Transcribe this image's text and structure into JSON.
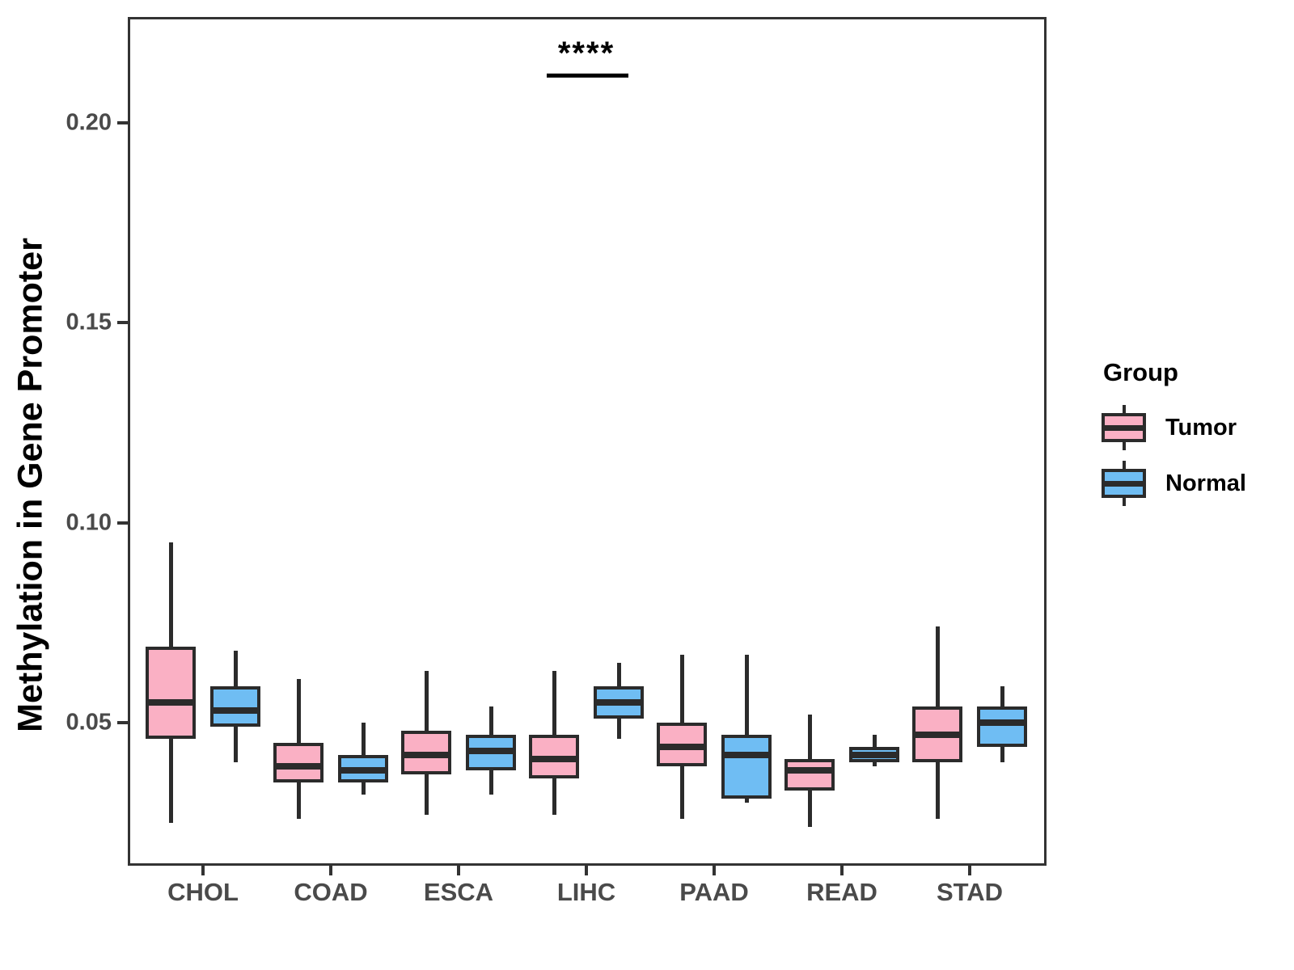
{
  "figure": {
    "background": "#FFFFFF"
  },
  "chart_data": {
    "type": "boxplot",
    "title": "",
    "xlabel": "",
    "ylabel": "Methylation in Gene Promoter",
    "categories": [
      "CHOL",
      "COAD",
      "ESCA",
      "LIHC",
      "PAAD",
      "READ",
      "STAD"
    ],
    "y_ticks": [
      {
        "value": 0.05,
        "label": "0.05"
      },
      {
        "value": 0.1,
        "label": "0.10"
      },
      {
        "value": 0.15,
        "label": "0.15"
      },
      {
        "value": 0.2,
        "label": "0.20"
      }
    ],
    "ylim": [
      0.014,
      0.227
    ],
    "grid": false,
    "legend": {
      "title": "Group",
      "position": "right",
      "entries": [
        {
          "label": "Tumor",
          "fill": "#FAB0C4"
        },
        {
          "label": "Normal",
          "fill": "#6FBDF3"
        }
      ]
    },
    "annotation": {
      "text": "****",
      "category": "LIHC",
      "y": 0.212
    },
    "colors": {
      "box_outline": "#2B2B2B",
      "axis": "#333333",
      "tick_text": "#4A4A4A",
      "title_text": "#000000"
    },
    "series": [
      {
        "name": "Tumor",
        "fill": "#FAB0C4",
        "boxes": [
          {
            "category": "CHOL",
            "whisker_low": 0.025,
            "q1": 0.046,
            "median": 0.055,
            "q3": 0.069,
            "whisker_high": 0.095
          },
          {
            "category": "COAD",
            "whisker_low": 0.026,
            "q1": 0.035,
            "median": 0.039,
            "q3": 0.045,
            "whisker_high": 0.061
          },
          {
            "category": "ESCA",
            "whisker_low": 0.027,
            "q1": 0.037,
            "median": 0.042,
            "q3": 0.048,
            "whisker_high": 0.063
          },
          {
            "category": "LIHC",
            "whisker_low": 0.027,
            "q1": 0.036,
            "median": 0.041,
            "q3": 0.047,
            "whisker_high": 0.063
          },
          {
            "category": "PAAD",
            "whisker_low": 0.026,
            "q1": 0.039,
            "median": 0.044,
            "q3": 0.05,
            "whisker_high": 0.067
          },
          {
            "category": "READ",
            "whisker_low": 0.024,
            "q1": 0.033,
            "median": 0.038,
            "q3": 0.041,
            "whisker_high": 0.052
          },
          {
            "category": "STAD",
            "whisker_low": 0.026,
            "q1": 0.04,
            "median": 0.047,
            "q3": 0.054,
            "whisker_high": 0.074
          }
        ]
      },
      {
        "name": "Normal",
        "fill": "#6FBDF3",
        "boxes": [
          {
            "category": "CHOL",
            "whisker_low": 0.04,
            "q1": 0.049,
            "median": 0.053,
            "q3": 0.059,
            "whisker_high": 0.068
          },
          {
            "category": "COAD",
            "whisker_low": 0.032,
            "q1": 0.035,
            "median": 0.038,
            "q3": 0.042,
            "whisker_high": 0.05
          },
          {
            "category": "ESCA",
            "whisker_low": 0.032,
            "q1": 0.038,
            "median": 0.043,
            "q3": 0.047,
            "whisker_high": 0.054
          },
          {
            "category": "LIHC",
            "whisker_low": 0.046,
            "q1": 0.051,
            "median": 0.055,
            "q3": 0.059,
            "whisker_high": 0.065
          },
          {
            "category": "PAAD",
            "whisker_low": 0.03,
            "q1": 0.031,
            "median": 0.042,
            "q3": 0.047,
            "whisker_high": 0.067
          },
          {
            "category": "READ",
            "whisker_low": 0.039,
            "q1": 0.04,
            "median": 0.042,
            "q3": 0.044,
            "whisker_high": 0.047
          },
          {
            "category": "STAD",
            "whisker_low": 0.04,
            "q1": 0.044,
            "median": 0.05,
            "q3": 0.054,
            "whisker_high": 0.059
          }
        ]
      }
    ]
  }
}
